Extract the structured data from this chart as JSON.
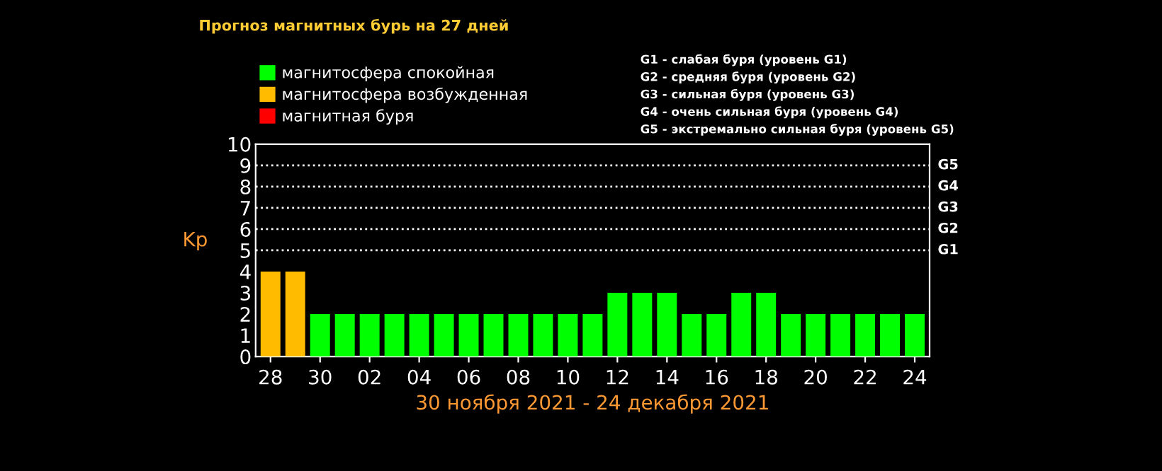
{
  "chart_data": {
    "type": "bar",
    "title": "Прогноз магнитных бурь на 27 дней",
    "xlabel": "30 ноября 2021 - 24 декабря 2021",
    "ylabel": "Kp",
    "categories": [
      "28",
      null,
      "30",
      null,
      "02",
      null,
      "04",
      null,
      "06",
      null,
      "08",
      null,
      "10",
      null,
      "12",
      null,
      "14",
      null,
      "16",
      null,
      "18",
      null,
      "20",
      null,
      "22",
      null,
      "24"
    ],
    "series": [
      {
        "name": "магнитосфера спокойная",
        "color": "#00ff00",
        "values": [
          null,
          null,
          2,
          2,
          2,
          2,
          2,
          2,
          2,
          2,
          2,
          2,
          2,
          2,
          3,
          3,
          3,
          2,
          2,
          3,
          3,
          2,
          2,
          2,
          2,
          2,
          2
        ]
      },
      {
        "name": "магнитосфера возбужденная",
        "color": "#ffbb00",
        "values": [
          4,
          4,
          null,
          null,
          null,
          null,
          null,
          null,
          null,
          null,
          null,
          null,
          null,
          null,
          null,
          null,
          null,
          null,
          null,
          null,
          null,
          null,
          null,
          null,
          null,
          null,
          null
        ]
      },
      {
        "name": "магнитная буря",
        "color": "#ff0000",
        "values": [
          null,
          null,
          null,
          null,
          null,
          null,
          null,
          null,
          null,
          null,
          null,
          null,
          null,
          null,
          null,
          null,
          null,
          null,
          null,
          null,
          null,
          null,
          null,
          null,
          null,
          null,
          null
        ]
      }
    ],
    "ylim": [
      0,
      10
    ],
    "yticks": [
      0,
      1,
      2,
      3,
      4,
      5,
      6,
      7,
      8,
      9,
      10
    ],
    "ref_lines": [
      {
        "axis": "y",
        "value": 5,
        "label": "G1",
        "color": "#ffffff",
        "line_style": "dotted"
      },
      {
        "axis": "y",
        "value": 6,
        "label": "G2",
        "color": "#ffffff",
        "line_style": "dotted"
      },
      {
        "axis": "y",
        "value": 7,
        "label": "G3",
        "color": "#ffffff",
        "line_style": "dotted"
      },
      {
        "axis": "y",
        "value": 8,
        "label": "G4",
        "color": "#ffffff",
        "line_style": "dotted"
      },
      {
        "axis": "y",
        "value": 9,
        "label": "G5",
        "color": "#ffffff",
        "line_style": "dotted"
      }
    ],
    "legend": "top left",
    "annotations": [
      "G1 - слабая буря (уровень G1)",
      "G2 - средняя буря (уровень G2)",
      "G3 - сильная буря (уровень G3)",
      "G4 - очень сильная буря (уровень G4)",
      "G5 - экстремально сильная буря (уровень G5)"
    ]
  }
}
